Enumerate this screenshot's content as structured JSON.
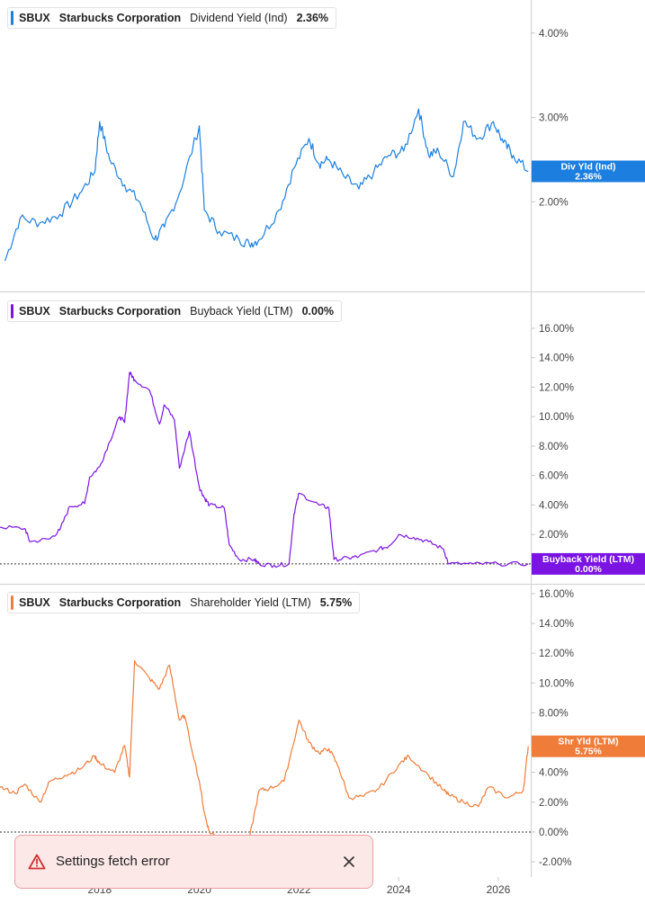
{
  "chart_data": [
    {
      "type": "line",
      "ticker": "SBUX",
      "company": "Starbucks Corporation",
      "metric": "Dividend Yield (Ind)",
      "current_value": "2.36%",
      "badge": [
        "Div Yld (Ind)",
        "2.36%"
      ],
      "color": "#1c7fe0",
      "ylim": [
        1.0,
        4.2
      ],
      "yticks": [
        "4.00%",
        "3.00%",
        "2.00%"
      ],
      "ytick_values": [
        4,
        3,
        2
      ],
      "x": [
        2016.1,
        2016.4,
        2016.8,
        2017.2,
        2017.6,
        2017.9,
        2018.0,
        2018.2,
        2018.5,
        2018.8,
        2019.1,
        2019.3,
        2019.6,
        2020.0,
        2020.1,
        2020.4,
        2020.8,
        2021.0,
        2021.2,
        2021.6,
        2021.9,
        2022.2,
        2022.4,
        2022.6,
        2022.9,
        2023.2,
        2023.5,
        2023.8,
        2024.1,
        2024.4,
        2024.6,
        2024.8,
        2025.1,
        2025.3,
        2025.6,
        2025.9,
        2026.1,
        2026.3,
        2026.6
      ],
      "y": [
        1.3,
        1.8,
        1.75,
        1.85,
        2.1,
        2.35,
        2.95,
        2.5,
        2.2,
        2.0,
        1.55,
        1.7,
        2.1,
        2.9,
        1.9,
        1.65,
        1.55,
        1.5,
        1.55,
        1.9,
        2.4,
        2.75,
        2.45,
        2.5,
        2.3,
        2.15,
        2.35,
        2.55,
        2.6,
        3.1,
        2.55,
        2.6,
        2.3,
        2.95,
        2.75,
        2.95,
        2.7,
        2.55,
        2.36
      ]
    },
    {
      "type": "line",
      "ticker": "SBUX",
      "company": "Starbucks Corporation",
      "metric": "Buyback Yield (LTM)",
      "current_value": "0.00%",
      "badge": [
        "Buyback Yield (LTM)",
        "0.00%"
      ],
      "color": "#7b14e3",
      "ylim": [
        -0.8,
        17.4
      ],
      "yticks": [
        "16.00%",
        "14.00%",
        "12.00%",
        "10.00%",
        "8.00%",
        "6.00%",
        "4.00%",
        "2.00%"
      ],
      "ytick_values": [
        16,
        14,
        12,
        10,
        8,
        6,
        4,
        2
      ],
      "zero_line": true,
      "x": [
        2016.0,
        2016.5,
        2016.6,
        2017.0,
        2017.2,
        2017.4,
        2017.7,
        2017.8,
        2018.0,
        2018.2,
        2018.4,
        2018.5,
        2018.6,
        2018.7,
        2019.0,
        2019.2,
        2019.3,
        2019.5,
        2019.6,
        2019.8,
        2020.0,
        2020.1,
        2020.2,
        2020.5,
        2020.6,
        2020.8,
        2021.1,
        2021.2,
        2021.5,
        2021.8,
        2021.9,
        2022.0,
        2022.4,
        2022.6,
        2022.7,
        2023.0,
        2023.2,
        2023.6,
        2023.8,
        2024.0,
        2024.3,
        2024.6,
        2024.9,
        2025.0,
        2025.5,
        2026.0,
        2026.6
      ],
      "y": [
        2.5,
        2.4,
        1.5,
        1.7,
        2.3,
        3.9,
        4.1,
        5.9,
        6.6,
        8.3,
        10.0,
        9.6,
        13.0,
        12.5,
        11.8,
        9.5,
        10.8,
        9.8,
        6.5,
        9.0,
        5.2,
        4.5,
        4.0,
        3.8,
        1.3,
        0.3,
        0.3,
        0.0,
        -0.1,
        0.0,
        3.4,
        4.8,
        4.0,
        3.8,
        0.3,
        0.4,
        0.5,
        1.0,
        1.2,
        2.0,
        1.8,
        1.5,
        1.0,
        0.0,
        0.0,
        0.0,
        0.0
      ]
    },
    {
      "type": "line",
      "ticker": "SBUX",
      "company": "Starbucks Corporation",
      "metric": "Shareholder Yield (LTM)",
      "current_value": "5.75%",
      "badge": [
        "Shr Yld (LTM)",
        "5.75%"
      ],
      "color": "#f07c3a",
      "ylim": [
        -2.6,
        16.6
      ],
      "yticks": [
        "16.00%",
        "14.00%",
        "12.00%",
        "10.00%",
        "8.00%",
        "6.00%",
        "4.00%",
        "2.00%",
        "0.00%",
        "-2.00%"
      ],
      "ytick_values": [
        16,
        14,
        12,
        10,
        8,
        6,
        4,
        2,
        0,
        -2
      ],
      "zero_line": true,
      "x": [
        2016.0,
        2016.3,
        2016.5,
        2016.8,
        2017.0,
        2017.3,
        2017.6,
        2017.9,
        2018.0,
        2018.3,
        2018.5,
        2018.6,
        2018.7,
        2019.0,
        2019.2,
        2019.4,
        2019.6,
        2019.7,
        2020.0,
        2020.1,
        2020.2,
        2020.4,
        2020.7,
        2021.0,
        2021.2,
        2021.4,
        2021.7,
        2022.0,
        2022.2,
        2022.4,
        2022.6,
        2022.8,
        2023.0,
        2023.3,
        2023.6,
        2024.0,
        2024.2,
        2024.6,
        2024.9,
        2025.0,
        2025.3,
        2025.6,
        2025.8,
        2026.2,
        2026.5,
        2026.6
      ],
      "y": [
        3.0,
        2.6,
        3.2,
        2.0,
        3.4,
        3.8,
        4.2,
        5.1,
        4.6,
        4.0,
        5.8,
        3.7,
        11.5,
        10.3,
        9.6,
        11.2,
        7.5,
        7.8,
        3.4,
        1.3,
        0.0,
        -0.4,
        -0.6,
        -0.5,
        2.8,
        2.9,
        3.4,
        7.5,
        6.0,
        5.3,
        5.6,
        4.3,
        2.3,
        2.4,
        2.9,
        4.5,
        5.1,
        3.8,
        2.8,
        2.5,
        2.0,
        1.7,
        3.0,
        2.3,
        2.8,
        5.75
      ]
    }
  ],
  "x_axis": {
    "ticks": [
      "2018",
      "2020",
      "2022",
      "2024",
      "2026"
    ],
    "tick_values": [
      2018,
      2020,
      2022,
      2024,
      2026
    ],
    "xlim": [
      2016.0,
      2026.65
    ]
  },
  "toast": {
    "message": "Settings fetch error",
    "icon": "warning-triangle-icon",
    "close_icon": "close-icon",
    "accent": "#d22d2d"
  }
}
